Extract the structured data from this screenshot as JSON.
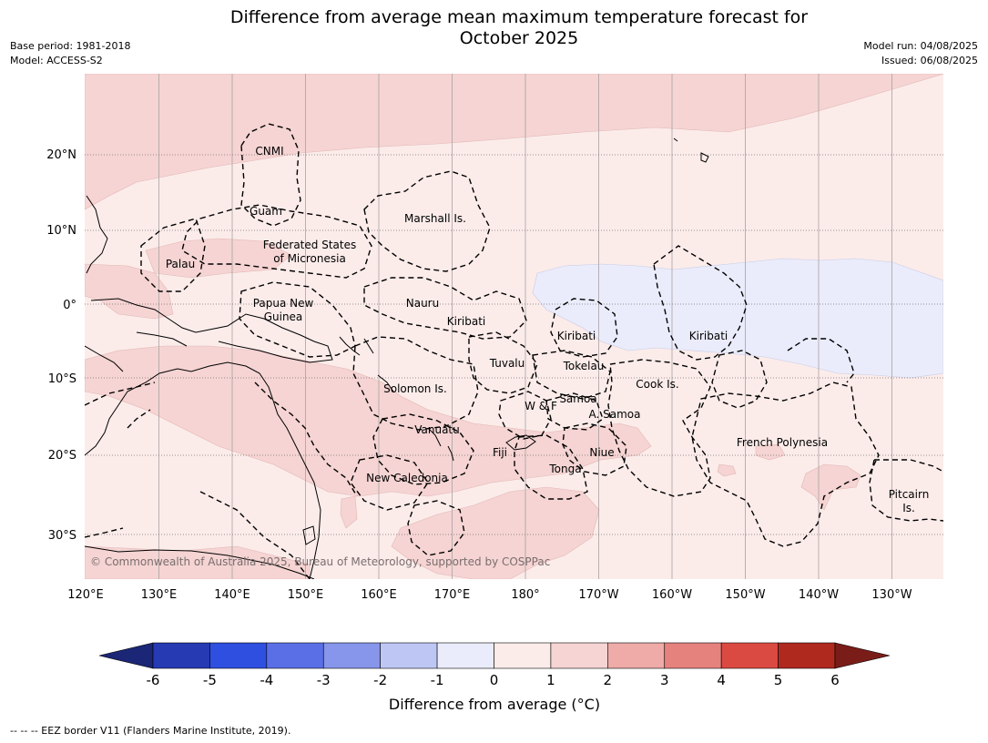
{
  "title_line1": "Difference from average mean maximum temperature forecast for",
  "title_line2": "October 2025",
  "meta_left": {
    "base_period": "Base period: 1981-2018",
    "model": "Model: ACCESS-S2"
  },
  "meta_right": {
    "model_run": "Model run: 04/08/2025",
    "issued": "Issued: 06/08/2025"
  },
  "map": {
    "lon_ticks": [
      "120°E",
      "130°E",
      "140°E",
      "150°E",
      "160°E",
      "170°E",
      "180°",
      "170°W",
      "160°W",
      "150°W",
      "140°W",
      "130°W"
    ],
    "lat_ticks": [
      "20°N",
      "10°N",
      "0°",
      "10°S",
      "20°S",
      "30°S"
    ],
    "region_labels": [
      "CNMI",
      "Guam",
      "Marshall Is.",
      "Federated States",
      "of Micronesia",
      "Palau",
      "Papua New",
      "Guinea",
      "Nauru",
      "Kiribati",
      "Kiribati",
      "Kiribati",
      "Tuvalu",
      "Tokelau",
      "Cook Is.",
      "Solomon Is.",
      "W & F",
      "Samoa",
      "A. Samoa",
      "Vanuatu",
      "Fiji",
      "Niue",
      "French Polynesia",
      "Tonga",
      "New Caledonia",
      "Pitcairn",
      "Is."
    ],
    "copyright": "© Commonwealth of Australia 2025, Bureau of Meteorology, supported by COSPPac",
    "colors": {
      "anom_0_1": "#fbecea",
      "anom_1_2": "#f5d4d3",
      "anom_neg1_0": "#eaecfb",
      "coast": "#000000",
      "eez": "#000000"
    }
  },
  "colorbar": {
    "ticks": [
      "-6",
      "-5",
      "-4",
      "-3",
      "-2",
      "-1",
      "0",
      "1",
      "2",
      "3",
      "4",
      "5",
      "6"
    ],
    "colors": [
      "#1b2677",
      "#263ab4",
      "#2f4fe0",
      "#5a6fe6",
      "#8795eb",
      "#bec6f4",
      "#eaecfb",
      "#fbecea",
      "#f5d4d3",
      "#eeaba8",
      "#e6827e",
      "#db4a42",
      "#b0291f",
      "#7a1c18"
    ],
    "label": "Difference from average (°C)"
  },
  "footer": "--  --  -- EEZ border V11 (Flanders Marine Institute, 2019)."
}
